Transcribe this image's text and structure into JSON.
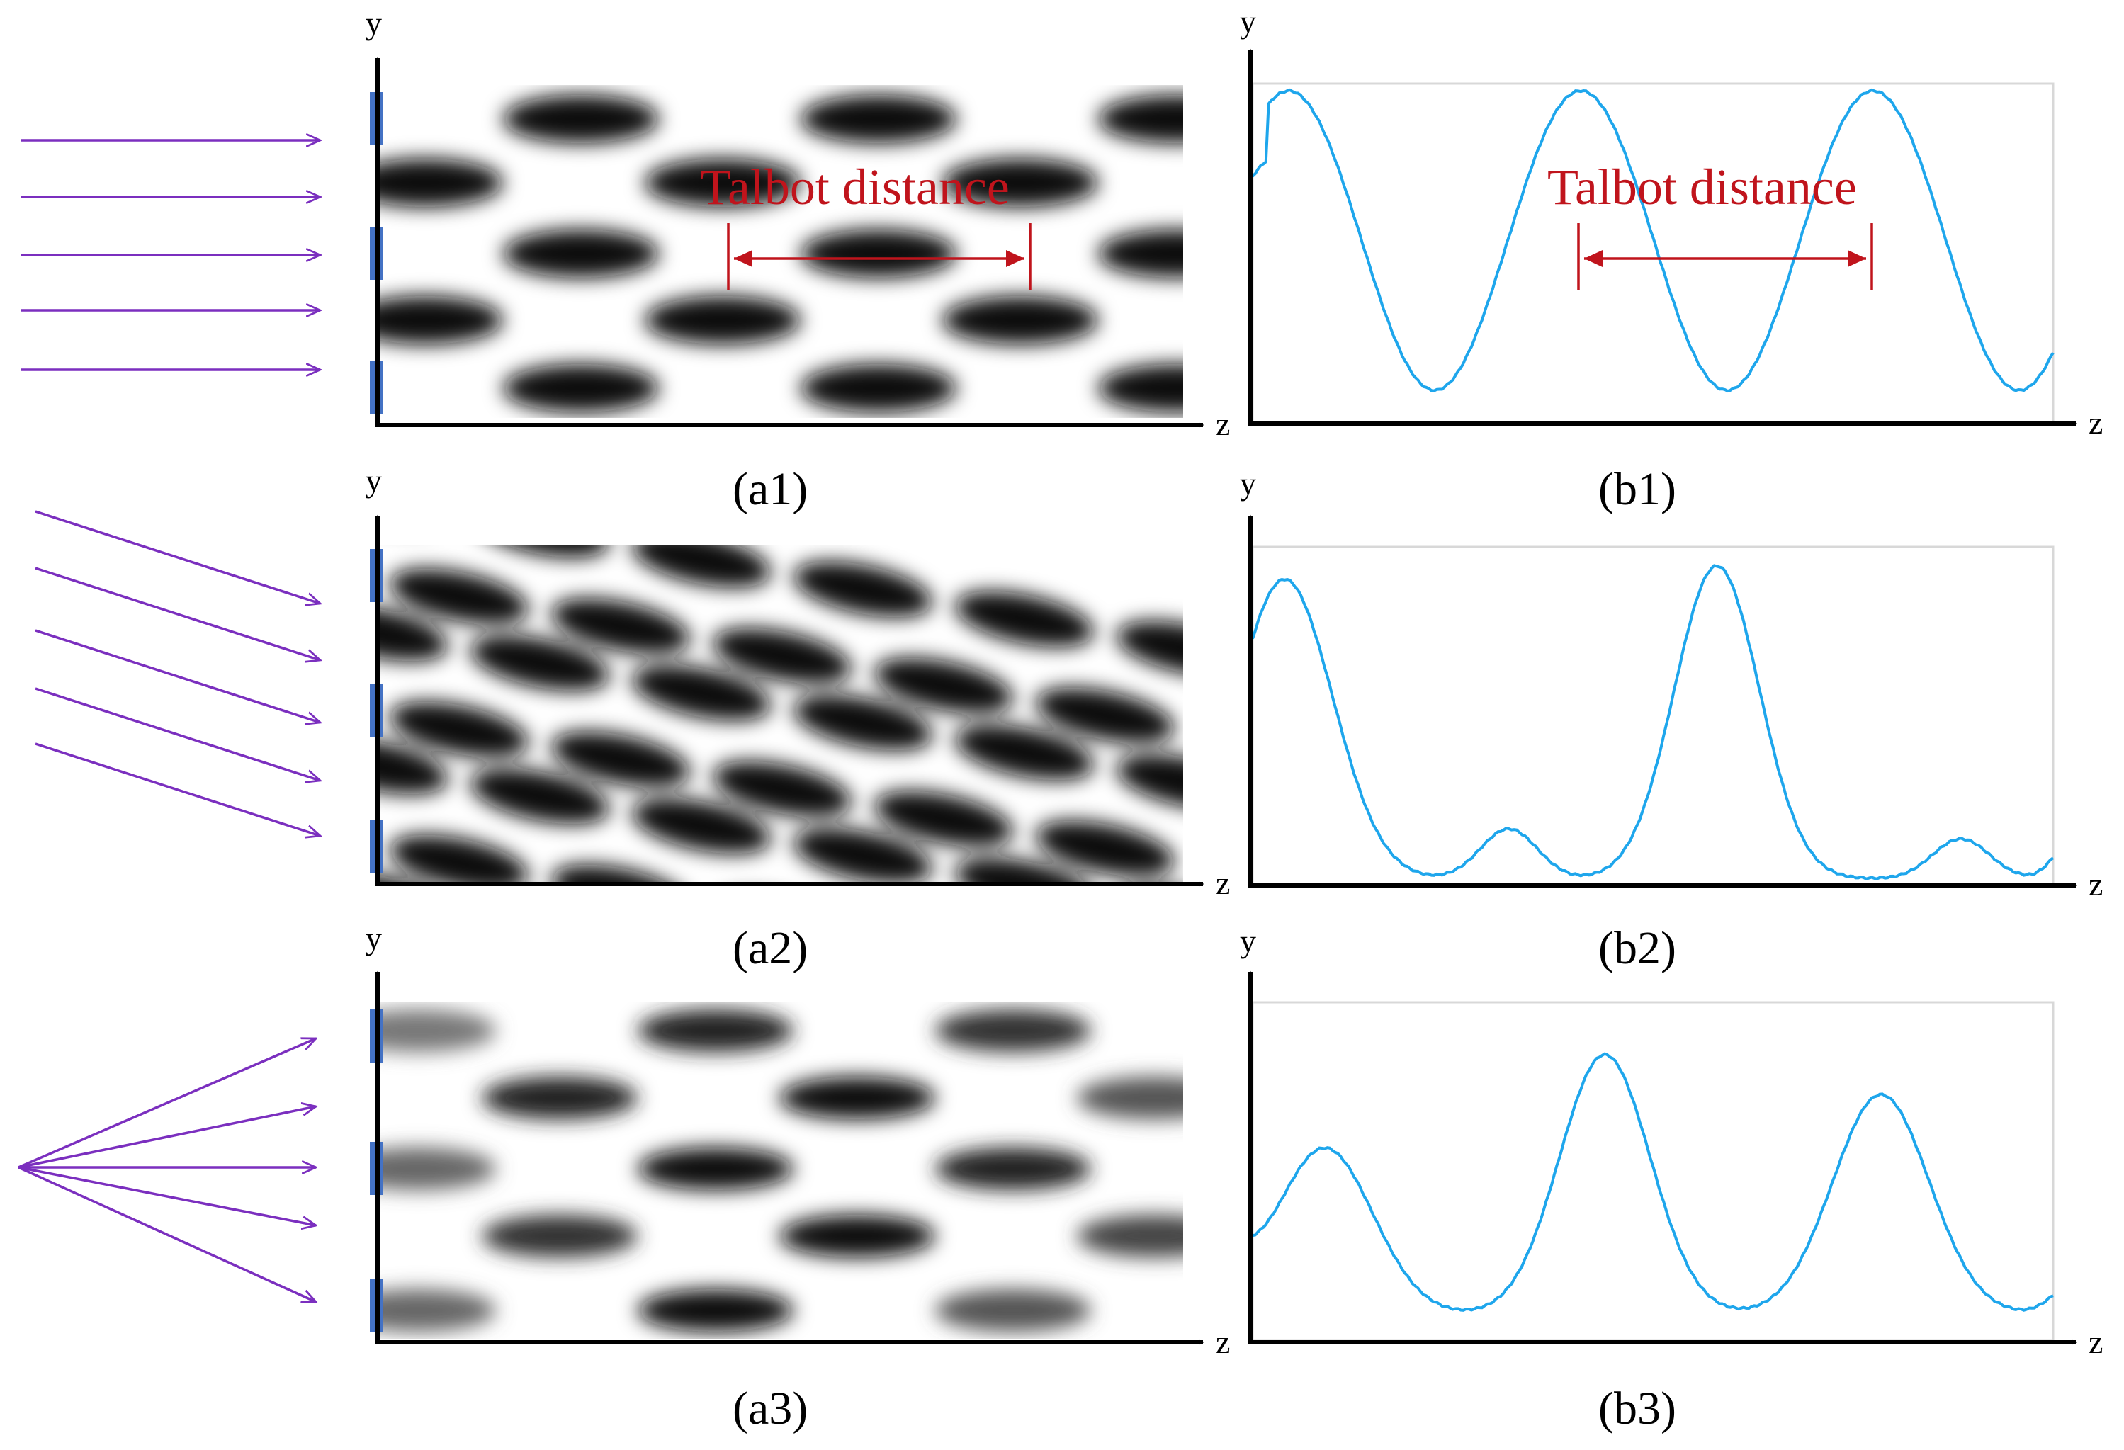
{
  "panels": {
    "a1": {
      "caption": "(a1)",
      "y_axis": "y",
      "z_axis": "z",
      "illumination": "normal incidence",
      "annotation": "Talbot distance"
    },
    "a2": {
      "caption": "(a2)",
      "y_axis": "y",
      "z_axis": "z",
      "illumination": "oblique incidence"
    },
    "a3": {
      "caption": "(a3)",
      "y_axis": "y",
      "z_axis": "z",
      "illumination": "point source"
    },
    "b1": {
      "caption": "(b1)",
      "y_axis": "y",
      "z_axis": "z",
      "annotation": "Talbot distance"
    },
    "b2": {
      "caption": "(b2)",
      "y_axis": "y",
      "z_axis": "z"
    },
    "b3": {
      "caption": "(b3)",
      "y_axis": "y",
      "z_axis": "z"
    }
  },
  "colors": {
    "rays": "#7b2fbf",
    "slits": "#4472c4",
    "annotation": "#c0141c",
    "profile_curve": "#1ea6ec",
    "axes": "#000000"
  }
}
